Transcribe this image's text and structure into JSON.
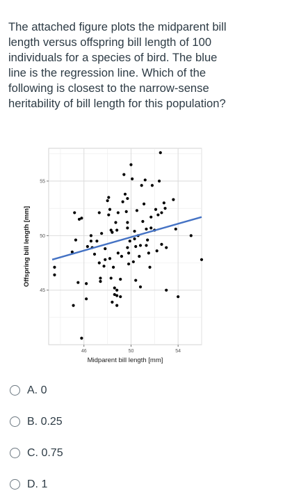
{
  "question": {
    "text": "The attached figure plots the midparent bill length versus offspring bill length of 100 individuals for a species of bird. The blue line is the regression line. Which of the following is closest to the narrow-sense heritability of bill length for this population?"
  },
  "options": [
    {
      "label": "A. 0"
    },
    {
      "label": "B. 0.25"
    },
    {
      "label": "C. 0.75"
    },
    {
      "label": "D. 1"
    }
  ],
  "chart_data": {
    "type": "scatter",
    "xlabel": "Midparent bill length [mm]",
    "ylabel": "Offspring bill length [mm]",
    "xlim": [
      43,
      56
    ],
    "ylim": [
      40,
      58
    ],
    "xticks": [
      46,
      50,
      54
    ],
    "yticks": [
      45,
      50,
      55
    ],
    "grid": true,
    "point_color": "#000000",
    "line_color": "#4472c4",
    "regression_line": {
      "x": [
        43.3,
        56.0
      ],
      "y": [
        47.8,
        51.7
      ]
    },
    "points": [
      [
        43.5,
        47.1
      ],
      [
        43.5,
        46.4
      ],
      [
        45.0,
        48.5
      ],
      [
        45.1,
        43.6
      ],
      [
        45.2,
        52.1
      ],
      [
        45.3,
        49.6
      ],
      [
        45.5,
        45.7
      ],
      [
        45.6,
        51.5
      ],
      [
        45.8,
        51.6
      ],
      [
        45.8,
        40.6
      ],
      [
        46.2,
        45.6
      ],
      [
        46.2,
        44.2
      ],
      [
        46.3,
        49.0
      ],
      [
        46.6,
        50.0
      ],
      [
        46.7,
        48.9
      ],
      [
        46.6,
        49.5
      ],
      [
        46.9,
        48.3
      ],
      [
        47.1,
        49.5
      ],
      [
        47.3,
        52.1
      ],
      [
        47.3,
        47.5
      ],
      [
        47.4,
        46.1
      ],
      [
        47.4,
        45.8
      ],
      [
        47.5,
        50.2
      ],
      [
        47.7,
        47.2
      ],
      [
        47.8,
        47.8
      ],
      [
        47.8,
        48.8
      ],
      [
        48.1,
        51.9
      ],
      [
        48.1,
        53.5
      ],
      [
        48.0,
        53.2
      ],
      [
        48.2,
        52.4
      ],
      [
        48.2,
        47.9
      ],
      [
        48.3,
        50.5
      ],
      [
        48.4,
        50.3
      ],
      [
        48.3,
        46.1
      ],
      [
        48.5,
        47.1
      ],
      [
        48.6,
        45.2
      ],
      [
        48.6,
        44.6
      ],
      [
        48.4,
        43.9
      ],
      [
        48.7,
        51.2
      ],
      [
        48.8,
        50.5
      ],
      [
        48.8,
        45.0
      ],
      [
        48.8,
        44.5
      ],
      [
        48.8,
        43.6
      ],
      [
        48.9,
        52.1
      ],
      [
        48.9,
        48.4
      ],
      [
        49.1,
        44.4
      ],
      [
        49.1,
        46.0
      ],
      [
        49.2,
        48.1
      ],
      [
        49.3,
        53.1
      ],
      [
        49.4,
        55.6
      ],
      [
        49.5,
        53.8
      ],
      [
        49.6,
        52.2
      ],
      [
        49.7,
        53.4
      ],
      [
        49.7,
        51.2
      ],
      [
        49.7,
        50.7
      ],
      [
        49.7,
        48.9
      ],
      [
        49.8,
        48.4
      ],
      [
        49.8,
        47.4
      ],
      [
        49.9,
        49.5
      ],
      [
        50.0,
        56.5
      ],
      [
        50.1,
        55.2
      ],
      [
        50.2,
        47.6
      ],
      [
        50.3,
        50.4
      ],
      [
        50.3,
        49.7
      ],
      [
        50.4,
        49.0
      ],
      [
        50.4,
        45.9
      ],
      [
        50.5,
        52.3
      ],
      [
        50.6,
        50.0
      ],
      [
        50.7,
        48.1
      ],
      [
        50.8,
        49.1
      ],
      [
        50.8,
        45.3
      ],
      [
        50.9,
        54.6
      ],
      [
        51.0,
        51.3
      ],
      [
        51.1,
        52.9
      ],
      [
        51.2,
        55.1
      ],
      [
        51.3,
        50.6
      ],
      [
        51.3,
        49.1
      ],
      [
        51.4,
        49.6
      ],
      [
        51.5,
        48.4
      ],
      [
        51.6,
        47.1
      ],
      [
        51.7,
        51.7
      ],
      [
        51.7,
        50.7
      ],
      [
        51.8,
        54.6
      ],
      [
        52.0,
        50.5
      ],
      [
        52.1,
        52.4
      ],
      [
        52.2,
        48.6
      ],
      [
        52.3,
        51.9
      ],
      [
        52.4,
        55.0
      ],
      [
        52.5,
        57.6
      ],
      [
        52.6,
        52.1
      ],
      [
        52.6,
        49.2
      ],
      [
        52.8,
        53.0
      ],
      [
        52.9,
        52.5
      ],
      [
        53.0,
        48.9
      ],
      [
        53.0,
        45.0
      ],
      [
        53.6,
        53.3
      ],
      [
        53.8,
        50.6
      ],
      [
        54.0,
        44.4
      ],
      [
        55.1,
        50.0
      ],
      [
        56.0,
        47.8
      ]
    ]
  }
}
